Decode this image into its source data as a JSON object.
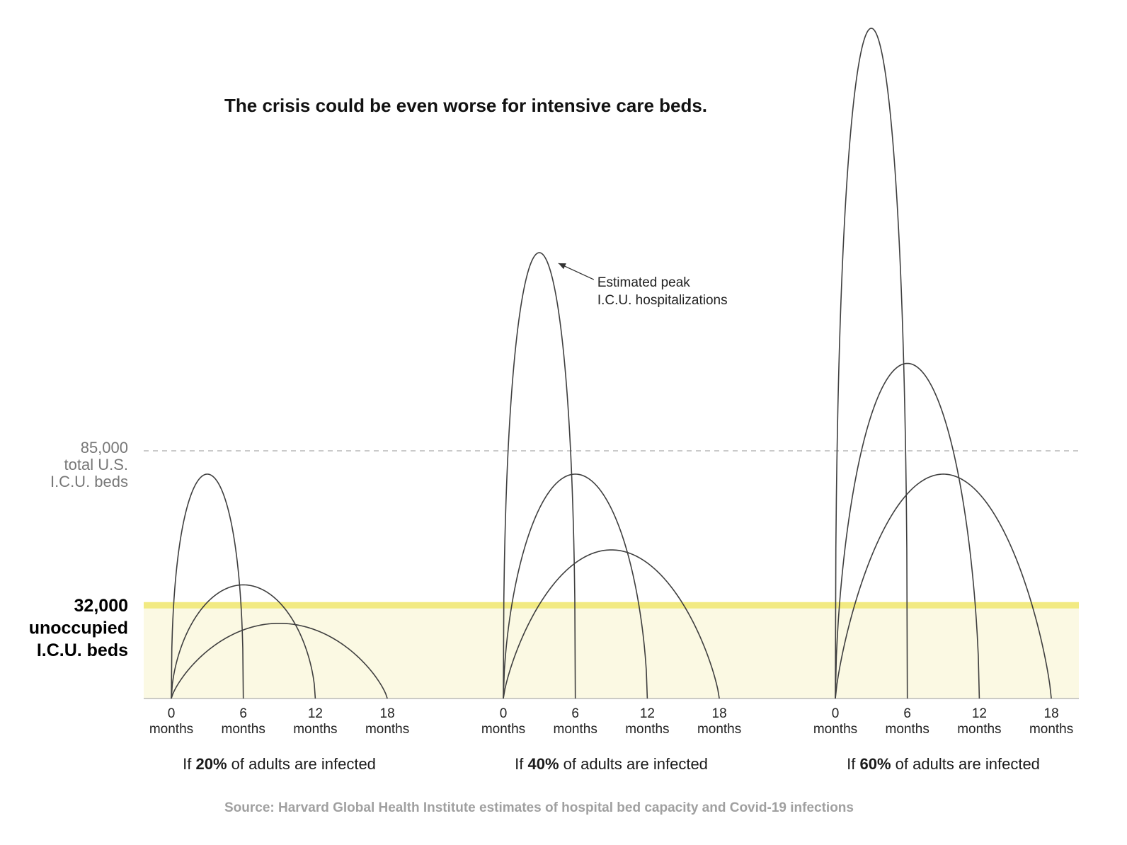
{
  "chart_data": {
    "type": "area",
    "title": "The crisis could be even worse for intensive care beds.",
    "reference_lines": [
      {
        "value": 85000,
        "label_lines": [
          "85,000",
          "total U.S.",
          "I.C.U. beds"
        ],
        "style": "dashed"
      },
      {
        "value": 32000,
        "label_lines": [
          "32,000",
          "unoccupied",
          "I.C.U. beds"
        ],
        "style": "highlight",
        "color": "#f2ea82",
        "fill": "#fbf9e3"
      }
    ],
    "x": [
      0,
      6,
      12,
      18
    ],
    "x_tick_labels": [
      {
        "value": "0",
        "unit": "months"
      },
      {
        "value": "6",
        "unit": "months"
      },
      {
        "value": "12",
        "unit": "months"
      },
      {
        "value": "18",
        "unit": "months"
      }
    ],
    "ylim": [
      0,
      230000
    ],
    "panels": [
      {
        "label_prefix": "If ",
        "label_bold": "20%",
        "label_suffix": " of adults are infected",
        "series": [
          {
            "duration_months": 6,
            "peak_month": 3,
            "peak": 77000
          },
          {
            "duration_months": 12,
            "peak_month": 6,
            "peak": 39000
          },
          {
            "duration_months": 18,
            "peak_month": 9,
            "peak": 25800
          }
        ]
      },
      {
        "label_prefix": "If ",
        "label_bold": "40%",
        "label_suffix": " of adults are infected",
        "series": [
          {
            "duration_months": 6,
            "peak_month": 3,
            "peak": 153000
          },
          {
            "duration_months": 12,
            "peak_month": 6,
            "peak": 77000
          },
          {
            "duration_months": 18,
            "peak_month": 9,
            "peak": 51000
          }
        ]
      },
      {
        "label_prefix": "If ",
        "label_bold": "60%",
        "label_suffix": " of adults are infected",
        "series": [
          {
            "duration_months": 6,
            "peak_month": 3,
            "peak": 230000
          },
          {
            "duration_months": 12,
            "peak_month": 6,
            "peak": 115000
          },
          {
            "duration_months": 18,
            "peak_month": 9,
            "peak": 77000
          }
        ]
      }
    ],
    "annotation": {
      "lines": [
        "Estimated peak",
        "I.C.U. hospitalizations"
      ],
      "panel": 1,
      "series": 0
    },
    "source": "Source: Harvard Global Health Institute estimates of hospital bed capacity and Covid-19 infections",
    "grid": false,
    "legend": "none"
  }
}
